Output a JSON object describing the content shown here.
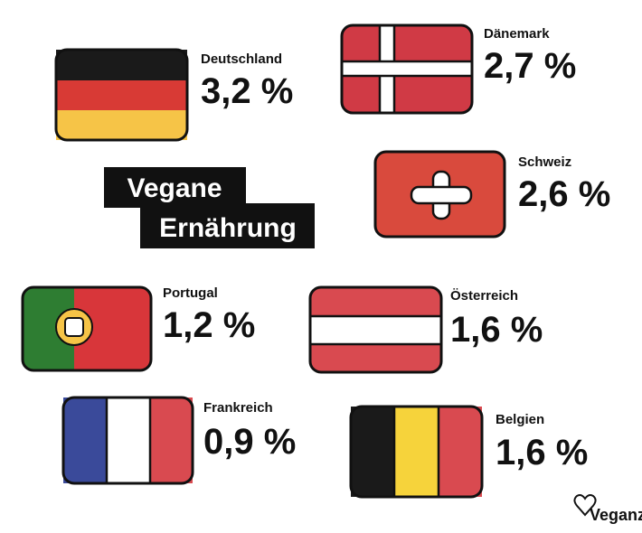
{
  "title": {
    "lines": [
      "Vegane",
      "Ernährung"
    ]
  },
  "items": [
    {
      "country": "Deutschland",
      "value": "3,2 %"
    },
    {
      "country": "Dänemark",
      "value": "2,7 %"
    },
    {
      "country": "Schweiz",
      "value": "2,6 %"
    },
    {
      "country": "Portugal",
      "value": "1,2 %"
    },
    {
      "country": "Österreich",
      "value": "1,6 %"
    },
    {
      "country": "Frankreich",
      "value": "0,9 %"
    },
    {
      "country": "Belgien",
      "value": "1,6 %"
    }
  ],
  "logo": "Veganz"
}
